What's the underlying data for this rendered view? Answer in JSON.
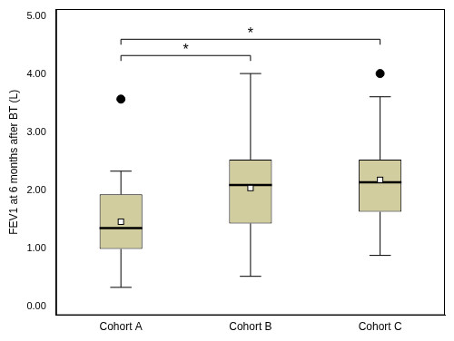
{
  "chart_data": {
    "type": "boxplot",
    "y_label": "FEV1 at 6 months after BT (L)",
    "categories": [
      "Cohort A",
      "Cohort B",
      "Cohort C"
    ],
    "boxes": [
      {
        "min": 0.33,
        "q1": 0.99,
        "median": 1.35,
        "q3": 1.93,
        "max": 2.33,
        "mean": 1.46,
        "outliers": [
          3.57
        ]
      },
      {
        "min": 0.52,
        "q1": 1.43,
        "median": 2.09,
        "q3": 2.53,
        "max": 4.01,
        "mean": 2.04,
        "outliers": []
      },
      {
        "min": 0.88,
        "q1": 1.63,
        "median": 2.14,
        "q3": 2.53,
        "max": 3.61,
        "mean": 2.18,
        "outliers": [
          4.01
        ]
      }
    ],
    "color": "#d2cd9e",
    "ylim": [
      -0.15,
      5.12
    ],
    "yticks": [
      {
        "value": 0,
        "label": "0.00"
      },
      {
        "value": 1,
        "label": "1.00"
      },
      {
        "value": 2,
        "label": "2.00"
      },
      {
        "value": 3,
        "label": "3.00"
      },
      {
        "value": 4,
        "label": "4.00"
      },
      {
        "value": 5,
        "label": "5.00"
      }
    ],
    "grid": false,
    "annotations": [
      {
        "text": "*",
        "from": "Cohort A",
        "to": "Cohort B",
        "y": 4.32
      },
      {
        "text": "*",
        "from": "Cohort A",
        "to": "Cohort C",
        "y": 4.6
      }
    ]
  }
}
